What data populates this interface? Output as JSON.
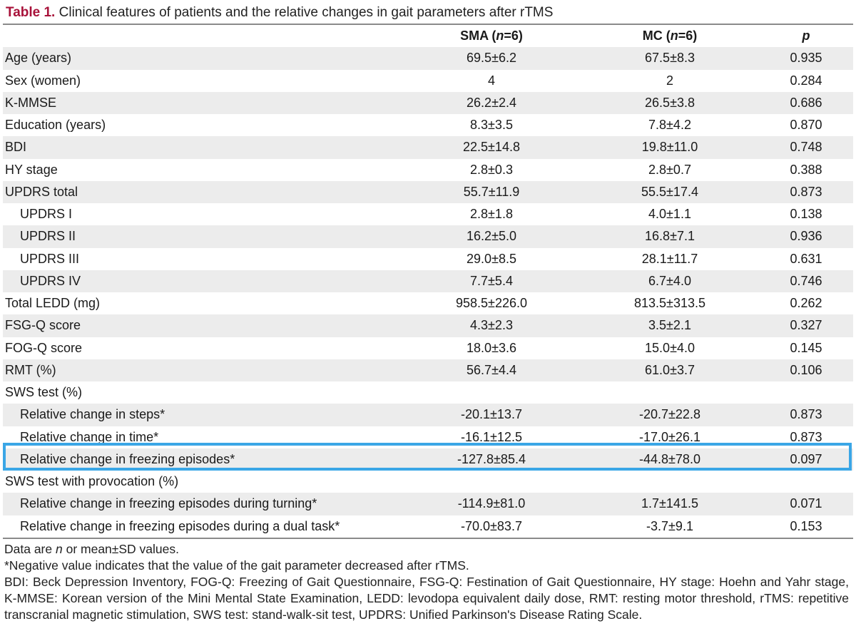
{
  "caption": {
    "label": "Table 1.",
    "text": "Clinical features of patients and the relative changes in gait parameters after rTMS"
  },
  "table": {
    "headers": {
      "label": "",
      "sma_prefix": "SMA (",
      "sma_n": "n",
      "sma_suffix": "=6)",
      "mc_prefix": "MC (",
      "mc_n": "n",
      "mc_suffix": "=6)",
      "p": "p"
    },
    "rows": [
      {
        "label": "Age (years)",
        "sma": "69.5±6.2",
        "mc": "67.5±8.3",
        "p": "0.935"
      },
      {
        "label": "Sex (women)",
        "sma": "4",
        "mc": "2",
        "p": "0.284"
      },
      {
        "label": "K-MMSE",
        "sma": "26.2±2.4",
        "mc": "26.5±3.8",
        "p": "0.686"
      },
      {
        "label": "Education (years)",
        "sma": "8.3±3.5",
        "mc": "7.8±4.2",
        "p": "0.870"
      },
      {
        "label": "BDI",
        "sma": "22.5±14.8",
        "mc": "19.8±11.0",
        "p": "0.748"
      },
      {
        "label": "HY stage",
        "sma": "2.8±0.3",
        "mc": "2.8±0.7",
        "p": "0.388"
      },
      {
        "label": "UPDRS total",
        "sma": "55.7±11.9",
        "mc": "55.5±17.4",
        "p": "0.873"
      },
      {
        "label": "UPDRS I",
        "sma": "2.8±1.8",
        "mc": "4.0±1.1",
        "p": "0.138"
      },
      {
        "label": "UPDRS II",
        "sma": "16.2±5.0",
        "mc": "16.8±7.1",
        "p": "0.936"
      },
      {
        "label": "UPDRS III",
        "sma": "29.0±8.5",
        "mc": "28.1±11.7",
        "p": "0.631"
      },
      {
        "label": "UPDRS IV",
        "sma": "7.7±5.4",
        "mc": "6.7±4.0",
        "p": "0.746"
      },
      {
        "label": "Total LEDD (mg)",
        "sma": "958.5±226.0",
        "mc": "813.5±313.5",
        "p": "0.262"
      },
      {
        "label": "FSG-Q score",
        "sma": "4.3±2.3",
        "mc": "3.5±2.1",
        "p": "0.327"
      },
      {
        "label": "FOG-Q score",
        "sma": "18.0±3.6",
        "mc": "15.0±4.0",
        "p": "0.145"
      },
      {
        "label": "RMT (%)",
        "sma": "56.7±4.4",
        "mc": "61.0±3.7",
        "p": "0.106"
      },
      {
        "label": "SWS test (%)",
        "sma": "",
        "mc": "",
        "p": ""
      },
      {
        "label": "Relative change in steps*",
        "sma": "-20.1±13.7",
        "mc": "-20.7±22.8",
        "p": "0.873"
      },
      {
        "label": "Relative change in time*",
        "sma": "-16.1±12.5",
        "mc": "-17.0±26.1",
        "p": "0.873"
      },
      {
        "label": "Relative change in freezing episodes*",
        "sma": "-127.8±85.4",
        "mc": "-44.8±78.0",
        "p": "0.097"
      },
      {
        "label": "SWS test with provocation (%)",
        "sma": "",
        "mc": "",
        "p": ""
      },
      {
        "label": "Relative change in freezing episodes during turning*",
        "sma": "-114.9±81.0",
        "mc": "1.7±141.5",
        "p": "0.071"
      },
      {
        "label": "Relative change in freezing episodes during a dual task*",
        "sma": "-70.0±83.7",
        "mc": "-3.7±9.1",
        "p": "0.153"
      }
    ]
  },
  "highlight": {
    "color": "#3aa6e6"
  },
  "notes": {
    "line1_pre": "Data are ",
    "line1_n": "n",
    "line1_post": " or mean±SD values.",
    "line2": "*Negative value indicates that the value of the gait parameter decreased after rTMS.",
    "line3": "BDI: Beck Depression Inventory, FOG-Q: Freezing of Gait Questionnaire, FSG-Q: Festination of Gait Questionnaire, HY stage: Hoehn and Yahr stage, K-MMSE: Korean version of the Mini Mental State Examination, LEDD: levodopa equivalent daily dose, RMT: resting motor threshold, rTMS: repetitive transcranial magnetic stimulation, SWS test: stand-walk-sit test, UPDRS: Unified Parkinson's Disease Rating Scale."
  }
}
